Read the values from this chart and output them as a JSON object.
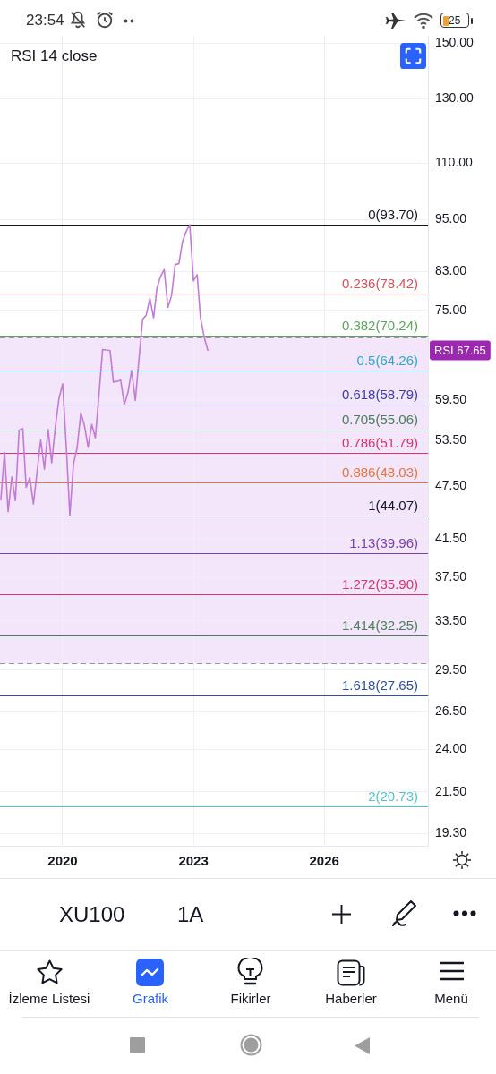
{
  "chart_data": {
    "type": "line",
    "title": "RSI 14 close",
    "x": [
      "2018-08",
      "2018-09",
      "2018-10",
      "2018-11",
      "2018-12",
      "2019-01",
      "2019-02",
      "2019-03",
      "2019-04",
      "2019-05",
      "2019-06",
      "2019-07",
      "2019-08",
      "2019-09",
      "2019-10",
      "2019-11",
      "2019-12",
      "2020-01",
      "2020-02",
      "2020-03",
      "2020-04",
      "2020-05",
      "2020-06",
      "2020-07",
      "2020-08",
      "2020-09",
      "2020-10",
      "2020-11",
      "2020-12",
      "2021-01",
      "2021-02",
      "2021-03",
      "2021-04",
      "2021-05",
      "2021-06",
      "2021-07",
      "2021-08",
      "2021-09",
      "2021-10",
      "2021-11",
      "2021-12",
      "2022-01",
      "2022-02",
      "2022-03",
      "2022-04",
      "2022-05",
      "2022-06",
      "2022-07",
      "2022-08",
      "2022-09",
      "2022-10",
      "2022-11",
      "2022-12",
      "2023-01",
      "2023-02",
      "2023-03",
      "2023-04",
      "2023-05"
    ],
    "series": [
      {
        "color": "#c27bd6",
        "values": [
          45.9,
          51.9,
          44.5,
          48.7,
          45.8,
          55.0,
          55.2,
          47.4,
          48.6,
          45.4,
          49.4,
          53.6,
          49.7,
          55.1,
          50.5,
          55.5,
          59.7,
          62.0,
          52.5,
          44.07,
          50.4,
          52.5,
          57.5,
          55.7,
          52.6,
          55.8,
          53.9,
          60.4,
          67.8,
          67.7,
          67.6,
          62.3,
          62.4,
          62.6,
          58.8,
          60.6,
          64.2,
          59.4,
          66.0,
          73.3,
          74.1,
          77.4,
          73.6,
          79.5,
          82.0,
          83.4,
          75.6,
          77.9,
          84.5,
          84.7,
          89.6,
          92.1,
          93.7,
          81.0,
          82.3,
          73.6,
          70.0,
          67.65
        ]
      }
    ],
    "xlim": [
      "2018-07-25",
      "2028-05-19"
    ],
    "xticks": [
      "2020",
      "2023",
      "2026"
    ],
    "ylim": [
      18.7,
      153
    ],
    "log": true,
    "yticks": [
      {
        "value": 150,
        "label": "150.00"
      },
      {
        "value": 130,
        "label": "130.00"
      },
      {
        "value": 110,
        "label": "110.00"
      },
      {
        "value": 95,
        "label": "95.00"
      },
      {
        "value": 83,
        "label": "83.00"
      },
      {
        "value": 75,
        "label": "75.00"
      },
      {
        "value": 59.5,
        "label": "59.50"
      },
      {
        "value": 53.5,
        "label": "53.50"
      },
      {
        "value": 47.5,
        "label": "47.50"
      },
      {
        "value": 41.5,
        "label": "41.50"
      },
      {
        "value": 37.5,
        "label": "37.50"
      },
      {
        "value": 33.5,
        "label": "33.50"
      },
      {
        "value": 29.5,
        "label": "29.50"
      },
      {
        "value": 26.5,
        "label": "26.50"
      },
      {
        "value": 24,
        "label": "24.00"
      },
      {
        "value": 21.5,
        "label": "21.50"
      },
      {
        "value": 19.3,
        "label": "19.30"
      }
    ],
    "grid": true,
    "marker": "none",
    "bands": [
      {
        "axis": "y",
        "from": 30,
        "to": 70,
        "color": "#f3e5fa"
      }
    ],
    "ref_lines": [
      {
        "axis": "y",
        "value": 70,
        "color": "#9598a1",
        "line_style": "dashed"
      },
      {
        "axis": "y",
        "value": 30,
        "color": "#9598a1",
        "line_style": "dashed"
      },
      {
        "axis": "y",
        "value": 93.7,
        "label": "0(93.70)",
        "color": "#131722"
      },
      {
        "axis": "y",
        "value": 78.42,
        "label": "0.236(78.42)",
        "color": "#d9505c"
      },
      {
        "axis": "y",
        "value": 70.24,
        "label": "0.382(70.24)",
        "color": "#5aa55a"
      },
      {
        "axis": "y",
        "value": 64.26,
        "label": "0.5(64.26)",
        "color": "#2fa8c8"
      },
      {
        "axis": "y",
        "value": 58.79,
        "label": "0.618(58.79)",
        "color": "#3c3ca8"
      },
      {
        "axis": "y",
        "value": 55.06,
        "label": "0.705(55.06)",
        "color": "#4a7d5a"
      },
      {
        "axis": "y",
        "value": 51.79,
        "label": "0.786(51.79)",
        "color": "#d6336c"
      },
      {
        "axis": "y",
        "value": 48.03,
        "label": "0.886(48.03)",
        "color": "#e8743b"
      },
      {
        "axis": "y",
        "value": 44.07,
        "label": "1(44.07)",
        "color": "#131722"
      },
      {
        "axis": "y",
        "value": 39.96,
        "label": "1.13(39.96)",
        "color": "#7a3fb0"
      },
      {
        "axis": "y",
        "value": 35.9,
        "label": "1.272(35.90)",
        "color": "#d6336c"
      },
      {
        "axis": "y",
        "value": 32.25,
        "label": "1.414(32.25)",
        "color": "#4a7d5a"
      },
      {
        "axis": "y",
        "value": 27.65,
        "label": "1.618(27.65)",
        "color": "#2e4ea0"
      },
      {
        "axis": "y",
        "value": 20.73,
        "label": "2(20.73)",
        "color": "#4dc7cc"
      }
    ],
    "annotations": [
      "23:54",
      "25",
      "XU100",
      "1A",
      "İzleme Listesi",
      "Grafik",
      "Fikirler",
      "Haberler",
      "Menü",
      "RSI 67.65"
    ]
  }
}
